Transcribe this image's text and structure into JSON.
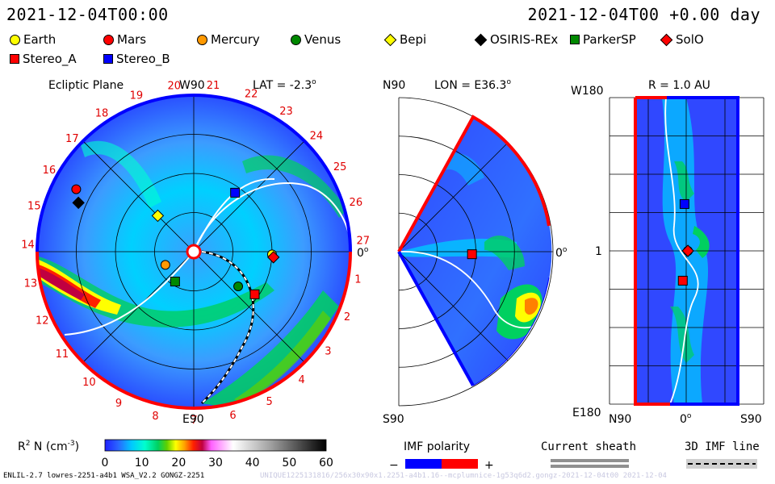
{
  "header": {
    "left_datetime": "2021-12-04T00:00",
    "right_datetime": "2021-12-04T00 +0.00 day"
  },
  "legend": [
    {
      "name": "Earth",
      "shape": "circle",
      "color": "#ffff00"
    },
    {
      "name": "Mars",
      "shape": "circle",
      "color": "#ff0000"
    },
    {
      "name": "Mercury",
      "shape": "circle",
      "color": "#ff9900"
    },
    {
      "name": "Venus",
      "shape": "circle",
      "color": "#008800"
    },
    {
      "name": "Bepi",
      "shape": "diamond",
      "color": "#ffff00"
    },
    {
      "name": "OSIRIS-REx",
      "shape": "diamond",
      "color": "#000000"
    },
    {
      "name": "ParkerSP",
      "shape": "square",
      "color": "#008800"
    },
    {
      "name": "SolO",
      "shape": "diamond",
      "color": "#ff0000"
    },
    {
      "name": "Stereo_A",
      "shape": "square",
      "color": "#ff0000"
    },
    {
      "name": "Stereo_B",
      "shape": "square",
      "color": "#0000ff"
    }
  ],
  "chart_data": [
    {
      "type": "polar-heatmap",
      "title": "Ecliptic Plane",
      "lat_label": "LAT = -2.3",
      "lat_unit_superscript": "o",
      "top_label": "W90",
      "bottom_label": "E90",
      "right_label": "0",
      "right_label_superscript": "o",
      "rim_numbers": [
        "1",
        "2",
        "3",
        "4",
        "5",
        "6",
        "7",
        "8",
        "9",
        "10",
        "11",
        "12",
        "13",
        "14",
        "15",
        "16",
        "17",
        "18",
        "19",
        "20",
        "21",
        "22",
        "23",
        "24",
        "25",
        "26",
        "27"
      ],
      "grid_rings_au": [
        0.5,
        1.0,
        1.5
      ],
      "rmax_au": 2.0,
      "bodies": [
        {
          "name": "Earth",
          "r_au": 1.0,
          "lon_deg": -2
        },
        {
          "name": "Mars",
          "r_au": 1.7,
          "lon_deg": 152
        },
        {
          "name": "Mercury",
          "r_au": 0.4,
          "lon_deg": 205
        },
        {
          "name": "Venus",
          "r_au": 0.72,
          "lon_deg": -38
        },
        {
          "name": "Bepi",
          "r_au": 0.65,
          "lon_deg": 135
        },
        {
          "name": "OSIRIS-REx",
          "r_au": 1.6,
          "lon_deg": 157
        },
        {
          "name": "ParkerSP",
          "r_au": 0.45,
          "lon_deg": 238
        },
        {
          "name": "SolO",
          "r_au": 1.02,
          "lon_deg": -4
        },
        {
          "name": "Stereo_A",
          "r_au": 0.95,
          "lon_deg": -35
        },
        {
          "name": "Stereo_B",
          "r_au": 0.92,
          "lon_deg": 55
        }
      ]
    },
    {
      "type": "meridional-heatmap",
      "lon_label": "LON = E36.3",
      "lon_unit_superscript": "o",
      "top_label": "N90",
      "bottom_label": "S90",
      "right_label": "0",
      "right_label_superscript": "o",
      "bodies": [
        {
          "name": "Stereo_A",
          "r_au": 0.95,
          "lat_deg": -2
        }
      ]
    },
    {
      "type": "heatmap",
      "title": "R = 1.0 AU",
      "y_top_label": "W180",
      "y_mid_label": "1",
      "y_bottom_label": "E180",
      "x_left_label": "N90",
      "x_mid_label": "0",
      "x_mid_superscript": "o",
      "x_right_label": "S90",
      "bodies": [
        {
          "name": "Stereo_B",
          "lat_deg": 2,
          "lon_deg": 55
        },
        {
          "name": "Earth",
          "lat_deg": -2,
          "lon_deg": 0
        },
        {
          "name": "SolO",
          "lat_deg": -2,
          "lon_deg": 0
        },
        {
          "name": "Stereo_A",
          "lat_deg": 4,
          "lon_deg": -35
        }
      ]
    }
  ],
  "colorbar": {
    "label_prefix": "R",
    "label_sup": "2",
    "label_mid": " N (cm",
    "label_sup2": "-3",
    "label_suffix": ")",
    "ticks": [
      "0",
      "10",
      "20",
      "30",
      "40",
      "50",
      "60"
    ],
    "min": 0,
    "max": 60
  },
  "imf_polarity": {
    "title": "IMF polarity",
    "minus": "−",
    "plus": "+"
  },
  "current_sheath": {
    "title": "Current sheath"
  },
  "imf_line": {
    "title": "3D IMF line"
  },
  "footer": {
    "left": "ENLIL-2.7 lowres-2251-a4b1 WSA_V2.2 GONGZ-2251",
    "right": "UNIQUE1225131816/256x30x90x1.2251-a4b1.16--mcplumnice-1g53q6d2.gongz-2021-12-04t00     2021-12-04"
  },
  "colors": {
    "cmap": [
      "#2020ff",
      "#2a66ff",
      "#00c8ff",
      "#00ffd0",
      "#00d060",
      "#60d000",
      "#ffff00",
      "#ffa000",
      "#ff2000",
      "#c00040",
      "#ff60ff",
      "#ffffff",
      "#a0a0a0",
      "#000000"
    ],
    "rim_red": "#ff0000",
    "rim_blue": "#0000ff"
  }
}
